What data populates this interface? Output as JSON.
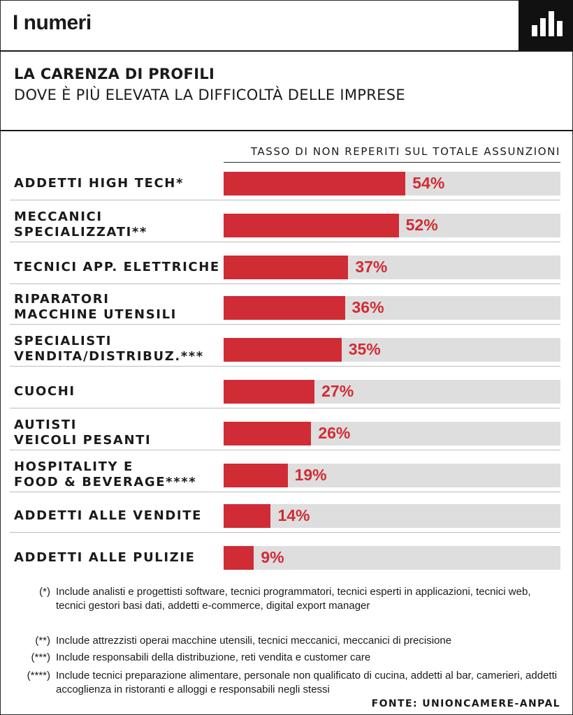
{
  "header": {
    "title": "I numeri",
    "icon": "bar-chart-icon"
  },
  "title": "LA CARENZA DI PROFILI",
  "subtitle": "DOVE È PIÙ ELEVATA LA DIFFICOLTÀ DELLE IMPRESE",
  "colors": {
    "bar": "#d02c35",
    "track": "#dedede",
    "icon_box": "#111111"
  },
  "chart_data": {
    "type": "bar",
    "orientation": "horizontal",
    "value_axis_label": "TASSO DI NON REPERITI SUL TOTALE ASSUNZIONI",
    "unit": "%",
    "xlim": [
      0,
      100
    ],
    "grid": false,
    "categories": [
      "ADDETTI HIGH TECH*",
      "MECCANICI SPECIALIZZATI**",
      "TECNICI APP. ELETTRICHE",
      "RIPARATORI MACCHINE UTENSILI",
      "SPECIALISTI VENDITA/DISTRIBUZ.***",
      "CUOCHI",
      "AUTISTI VEICOLI PESANTI",
      "HOSPITALITY E FOOD & BEVERAGE****",
      "ADDETTI ALLE VENDITE",
      "ADDETTI ALLE PULIZIE"
    ],
    "values": [
      54,
      52,
      37,
      36,
      35,
      27,
      26,
      19,
      14,
      9
    ],
    "data_labels": [
      "54%",
      "52%",
      "37%",
      "36%",
      "35%",
      "27%",
      "26%",
      "19%",
      "14%",
      "9%"
    ]
  },
  "notes": [
    {
      "mark": "(*)",
      "text": "Include analisti e progettisti software, tecnici programmatori, tecnici esperti in applicazioni,  tecnici web, tecnici gestori basi dati, addetti e-commerce, digital export manager"
    },
    {
      "mark": "(**)",
      "text": "Include attrezzisti operai macchine utensili, tecnici meccanici, meccanici di precisione"
    },
    {
      "mark": "(***)",
      "text": "Include responsabili della distribuzione, reti vendita e customer care"
    },
    {
      "mark": "(****)",
      "text": "Include tecnici preparazione alimentare, personale non qualificato di cucina, addetti al bar, camerieri, addetti accoglienza in ristoranti e alloggi e responsabili negli stessi"
    }
  ],
  "source": "FONTE: UNIONCAMERE-ANPAL"
}
